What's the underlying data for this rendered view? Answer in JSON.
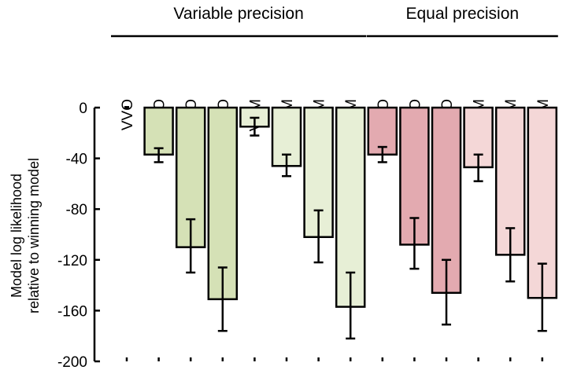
{
  "chart_data": {
    "type": "bar",
    "title": "",
    "xlabel": "",
    "ylabel": "Model log likelihood",
    "ylabel_line2": "relative to winning model",
    "ylim": [
      -200,
      0
    ],
    "yticks": [
      0,
      -40,
      -80,
      -120,
      -160,
      -200
    ],
    "groups": [
      {
        "label": "Variable precision",
        "first": 0,
        "last": 7
      },
      {
        "label": "Equal precision",
        "first": 8,
        "last": 13
      }
    ],
    "categories": [
      "VVO",
      "VEO",
      "VAO",
      "VSO",
      "VVM",
      "VEM",
      "VAM",
      "VSM",
      "EEO",
      "EAO",
      "ESO",
      "EEM",
      "EAM",
      "ESM"
    ],
    "values": [
      0,
      -37,
      -110,
      -151,
      -15,
      -46,
      -102,
      -157,
      -37,
      -108,
      -146,
      -47,
      -116,
      -150
    ],
    "error_low": [
      0,
      -43,
      -130,
      -176,
      -22,
      -54,
      -122,
      -182,
      -43,
      -127,
      -171,
      -58,
      -137,
      -176
    ],
    "error_high": [
      0,
      -32,
      -88,
      -126,
      -8,
      -37,
      -81,
      -130,
      -31,
      -87,
      -120,
      -37,
      -95,
      -123
    ],
    "colors": [
      "#ffffff",
      "#d5e1b6",
      "#d5e1b6",
      "#d5e1b6",
      "#e7efd6",
      "#e7efd6",
      "#e7efd6",
      "#e7efd6",
      "#e3aab0",
      "#e3aab0",
      "#e3aab0",
      "#f4d7d7",
      "#f4d7d7",
      "#f4d7d7"
    ]
  }
}
